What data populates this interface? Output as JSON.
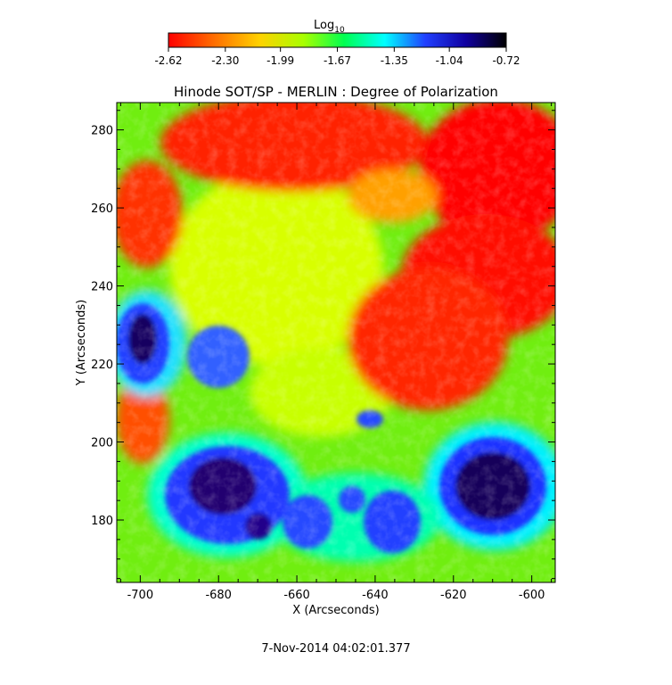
{
  "chart_data": {
    "type": "heatmap",
    "title": "Hinode SOT/SP - MERLIN : Degree of Polarization",
    "xlabel": "X (Arcseconds)",
    "ylabel": "Y (Arcseconds)",
    "xlim": [
      -706,
      -594
    ],
    "ylim": [
      164,
      287
    ],
    "x_ticks": [
      -700,
      -680,
      -660,
      -640,
      -620,
      -600
    ],
    "y_ticks": [
      180,
      200,
      220,
      240,
      260,
      280
    ],
    "x_tick_labels": [
      "-700",
      "-680",
      "-660",
      "-640",
      "-620",
      "-600"
    ],
    "y_tick_labels": [
      "180",
      "200",
      "220",
      "240",
      "260",
      "280"
    ],
    "colorbar": {
      "label_base": "Log",
      "label_sub": "10",
      "scale": "log10",
      "min": -2.62,
      "max": -0.72,
      "ticks": [
        -2.62,
        -2.3,
        -1.99,
        -1.67,
        -1.35,
        -1.04,
        -0.72
      ],
      "tick_labels": [
        "-2.62",
        "-2.30",
        "-1.99",
        "-1.67",
        "-1.35",
        "-1.04",
        "-0.72"
      ],
      "colormap": [
        "#ff0000",
        "#ff7f00",
        "#ffd700",
        "#b0ff00",
        "#00ff40",
        "#00ffff",
        "#2040ff",
        "#0000c0",
        "#000000"
      ]
    },
    "timestamp": "7-Nov-2014 04:02:01.377"
  }
}
